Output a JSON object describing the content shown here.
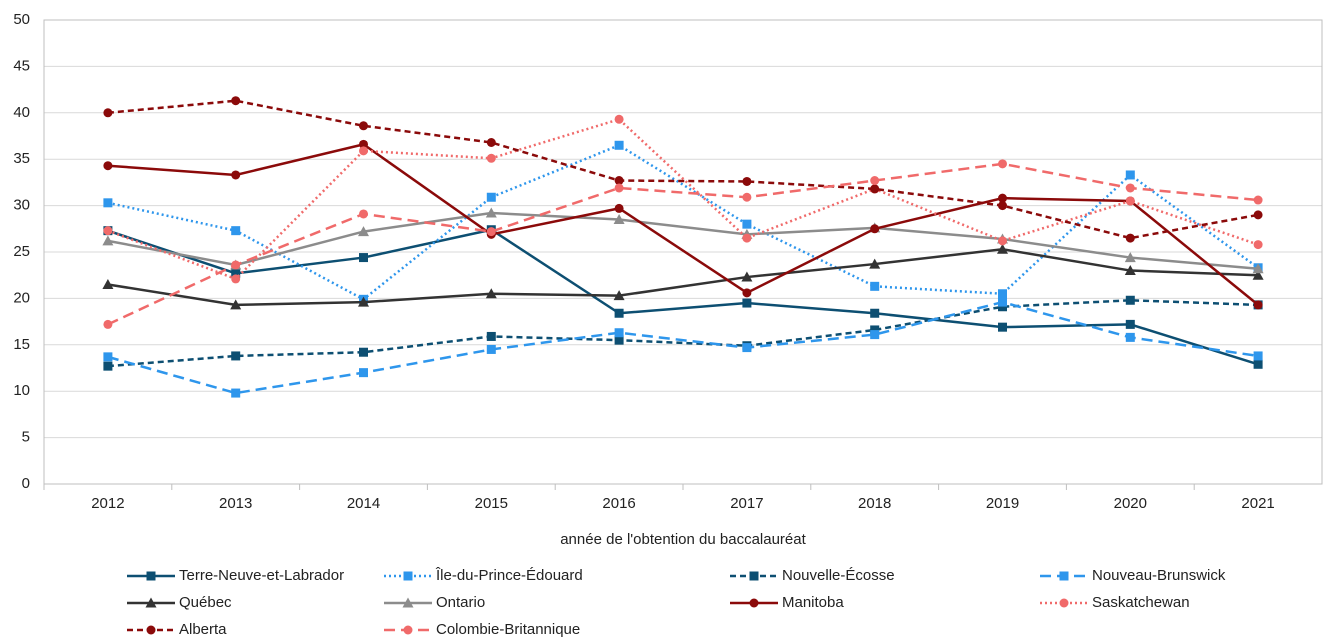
{
  "chart_data": {
    "type": "line",
    "xlabel": "année de l'obtention du baccalauréat",
    "categories": [
      "2012",
      "2013",
      "2014",
      "2015",
      "2016",
      "2017",
      "2018",
      "2019",
      "2020",
      "2021"
    ],
    "ylim": [
      0,
      50
    ],
    "yticks": [
      0,
      5,
      10,
      15,
      20,
      25,
      30,
      35,
      40,
      45,
      50
    ],
    "grid": true,
    "series": [
      {
        "name": "Terre-Neuve-et-Labrador",
        "color": "#0d4f72",
        "dash": "solid",
        "marker": "square",
        "values": [
          27.3,
          22.7,
          24.4,
          27.4,
          18.4,
          19.5,
          18.4,
          16.9,
          17.2,
          12.9
        ]
      },
      {
        "name": "Île-du-Prince-Édouard",
        "color": "#2e96ec",
        "dash": "dotted",
        "marker": "square",
        "values": [
          30.3,
          27.3,
          19.9,
          30.9,
          36.5,
          28.0,
          21.3,
          20.5,
          33.3,
          23.3
        ]
      },
      {
        "name": "Nouvelle-Écosse",
        "color": "#0d4f72",
        "dash": "dashed",
        "marker": "square",
        "values": [
          12.7,
          13.8,
          14.2,
          15.9,
          15.5,
          14.9,
          16.6,
          19.1,
          19.8,
          19.3
        ]
      },
      {
        "name": "Nouveau-Brunswick",
        "color": "#2e96ec",
        "dash": "longdash",
        "marker": "square",
        "values": [
          13.7,
          9.8,
          12.0,
          14.5,
          16.3,
          14.7,
          16.1,
          19.6,
          15.8,
          13.8
        ]
      },
      {
        "name": "Québec",
        "color": "#333333",
        "dash": "solid",
        "marker": "triangle",
        "values": [
          21.5,
          19.3,
          19.6,
          20.5,
          20.3,
          22.3,
          23.7,
          25.3,
          23.0,
          22.5
        ]
      },
      {
        "name": "Ontario",
        "color": "#8c8c8c",
        "dash": "solid",
        "marker": "triangle",
        "values": [
          26.2,
          23.6,
          27.2,
          29.2,
          28.5,
          26.9,
          27.6,
          26.4,
          24.4,
          23.2
        ]
      },
      {
        "name": "Manitoba",
        "color": "#8b0a0a",
        "dash": "solid",
        "marker": "circle",
        "values": [
          34.3,
          33.3,
          36.6,
          26.9,
          29.7,
          20.6,
          27.5,
          30.8,
          30.5,
          19.3
        ]
      },
      {
        "name": "Saskatchewan",
        "color": "#f06a6a",
        "dash": "dotted",
        "marker": "circle",
        "values": [
          27.3,
          22.1,
          35.9,
          35.1,
          39.3,
          26.5,
          31.8,
          26.2,
          30.5,
          25.8
        ]
      },
      {
        "name": "Alberta",
        "color": "#8b0a0a",
        "dash": "dashed",
        "marker": "circle",
        "values": [
          40.0,
          41.3,
          38.6,
          36.8,
          32.7,
          32.6,
          31.8,
          30.0,
          26.5,
          29.0
        ]
      },
      {
        "name": "Colombie-Britannique",
        "color": "#f06a6a",
        "dash": "longdash",
        "marker": "circle",
        "values": [
          17.2,
          23.6,
          29.1,
          27.2,
          31.9,
          30.9,
          32.7,
          34.5,
          31.9,
          30.6
        ]
      }
    ]
  }
}
